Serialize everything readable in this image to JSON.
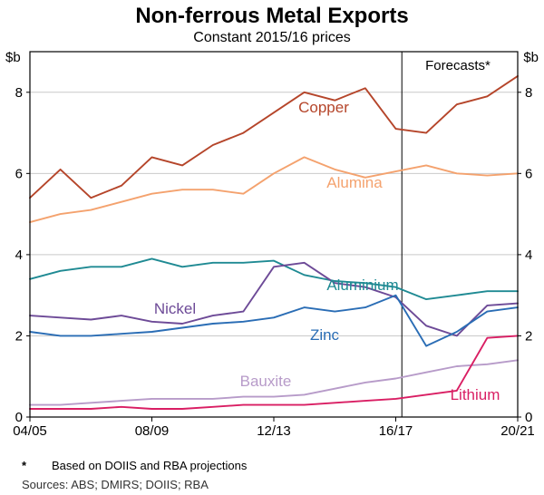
{
  "title": "Non-ferrous Metal Exports",
  "subtitle": "Constant 2015/16 prices",
  "axis_unit_left": "$b",
  "axis_unit_right": "$b",
  "forecast_label": "Forecasts*",
  "footnote_marker": "*",
  "footnote_text": "Based on DOIIS and RBA projections",
  "sources_text": "Sources: ABS; DMIRS; DOIIS; RBA",
  "chart_data": {
    "type": "line",
    "n_points": 17,
    "x_tick_labels": [
      "04/05",
      "08/09",
      "12/13",
      "16/17",
      "20/21"
    ],
    "x_tick_indices": [
      0,
      4,
      8,
      12,
      16
    ],
    "ylim": [
      0,
      9
    ],
    "y_ticks": [
      0,
      2,
      4,
      6,
      8
    ],
    "ylabel": "$b",
    "grid": true,
    "grid_color": "#c9c9c9",
    "forecast_line_x_index": 12.2,
    "series": [
      {
        "name": "Copper",
        "color": "#b5452a",
        "values": [
          5.4,
          6.1,
          5.4,
          5.7,
          6.4,
          6.2,
          6.7,
          7.0,
          7.5,
          8.0,
          7.8,
          8.1,
          7.1,
          7.0,
          7.7,
          7.9,
          8.4
        ]
      },
      {
        "name": "Alumina",
        "color": "#f4a26e",
        "values": [
          4.8,
          5.0,
          5.1,
          5.3,
          5.5,
          5.6,
          5.6,
          5.5,
          6.0,
          6.4,
          6.1,
          5.9,
          6.05,
          6.2,
          6.0,
          5.95,
          6.0
        ]
      },
      {
        "name": "Aluminium",
        "color": "#1f8a93",
        "values": [
          3.4,
          3.6,
          3.7,
          3.7,
          3.9,
          3.7,
          3.8,
          3.8,
          3.85,
          3.5,
          3.35,
          3.3,
          3.2,
          2.9,
          3.0,
          3.1,
          3.1
        ]
      },
      {
        "name": "Nickel",
        "color": "#6d4a97",
        "values": [
          2.5,
          2.45,
          2.4,
          2.5,
          2.35,
          2.3,
          2.5,
          2.6,
          3.7,
          3.8,
          3.3,
          3.2,
          2.95,
          2.25,
          2.0,
          2.75,
          2.8
        ]
      },
      {
        "name": "Zinc",
        "color": "#2a6db5",
        "values": [
          2.1,
          2.0,
          2.0,
          2.05,
          2.1,
          2.2,
          2.3,
          2.35,
          2.45,
          2.7,
          2.6,
          2.7,
          3.0,
          1.75,
          2.1,
          2.6,
          2.7
        ]
      },
      {
        "name": "Bauxite",
        "color": "#b79bc9",
        "values": [
          0.3,
          0.3,
          0.35,
          0.4,
          0.45,
          0.45,
          0.45,
          0.5,
          0.5,
          0.55,
          0.7,
          0.85,
          0.95,
          1.1,
          1.25,
          1.3,
          1.4
        ]
      },
      {
        "name": "Lithium",
        "color": "#d91e63",
        "values": [
          0.2,
          0.2,
          0.2,
          0.25,
          0.2,
          0.2,
          0.25,
          0.3,
          0.3,
          0.3,
          0.35,
          0.4,
          0.45,
          0.55,
          0.65,
          1.95,
          2.0
        ]
      }
    ]
  }
}
